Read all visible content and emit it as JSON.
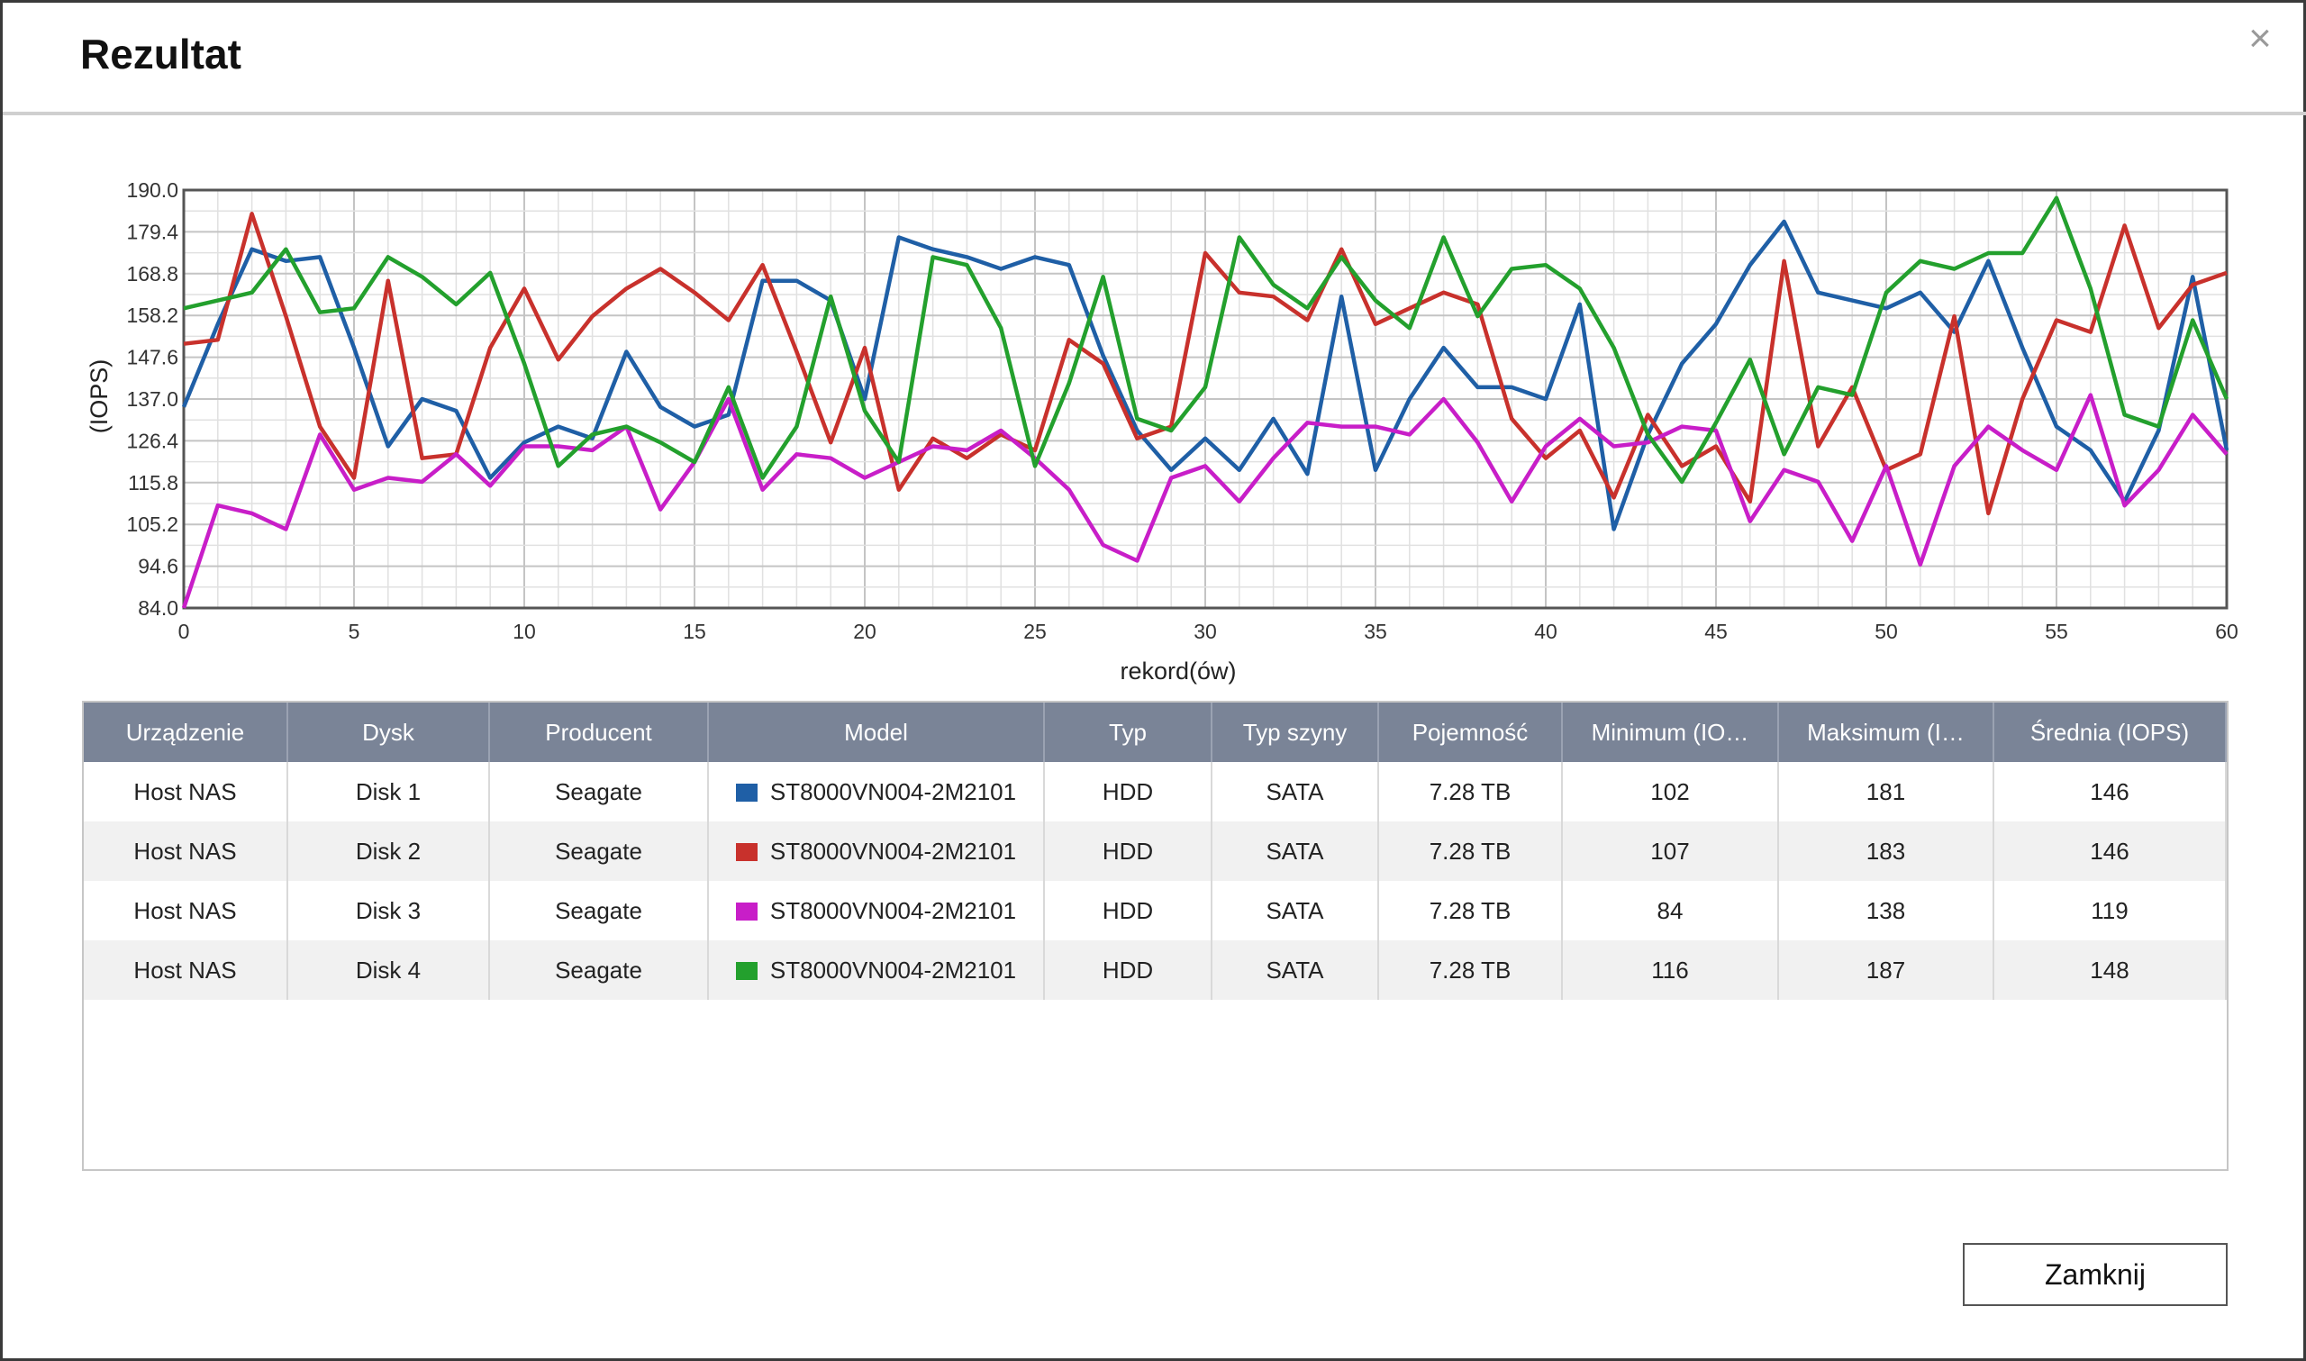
{
  "dialog": {
    "title": "Rezultat",
    "close_icon": "×",
    "close_button_label": "Zamknij"
  },
  "chart_data": {
    "type": "line",
    "xlabel": "rekord(ów)",
    "ylabel": "(IOPS)",
    "xlim": [
      0,
      60
    ],
    "ylim": [
      84.0,
      190.0
    ],
    "x_ticks": [
      "0",
      "5",
      "10",
      "15",
      "20",
      "25",
      "30",
      "35",
      "40",
      "45",
      "50",
      "55",
      "60"
    ],
    "y_ticks": [
      "84.0",
      "94.6",
      "105.2",
      "115.8",
      "126.4",
      "137.0",
      "147.6",
      "158.2",
      "168.8",
      "179.4",
      "190.0"
    ],
    "grid": true,
    "x": [
      0,
      1,
      2,
      3,
      4,
      5,
      6,
      7,
      8,
      9,
      10,
      11,
      12,
      13,
      14,
      15,
      16,
      17,
      18,
      19,
      20,
      21,
      22,
      23,
      24,
      25,
      26,
      27,
      28,
      29,
      30,
      31,
      32,
      33,
      34,
      35,
      36,
      37,
      38,
      39,
      40,
      41,
      42,
      43,
      44,
      45,
      46,
      47,
      48,
      49,
      50,
      51,
      52,
      53,
      54,
      55,
      56,
      57,
      58,
      59,
      60
    ],
    "series": [
      {
        "name": "Disk 1",
        "color": "#1f5fa6",
        "values": [
          135,
          156,
          175,
          172,
          173,
          150,
          125,
          137,
          134,
          117,
          126,
          130,
          127,
          149,
          135,
          130,
          133,
          167,
          167,
          162,
          137,
          178,
          175,
          173,
          170,
          173,
          171,
          148,
          129,
          119,
          127,
          119,
          132,
          118,
          163,
          119,
          137,
          150,
          140,
          140,
          137,
          161,
          104,
          128,
          146,
          156,
          171,
          182,
          164,
          162,
          160,
          164,
          154,
          172,
          150,
          130,
          124,
          111,
          129,
          168,
          124
        ]
      },
      {
        "name": "Disk 2",
        "color": "#c8312c",
        "values": [
          151,
          152,
          184,
          158,
          130,
          117,
          167,
          122,
          123,
          150,
          165,
          147,
          158,
          165,
          170,
          164,
          157,
          171,
          149,
          126,
          150,
          114,
          127,
          122,
          128,
          124,
          152,
          146,
          127,
          130,
          174,
          164,
          163,
          157,
          175,
          156,
          160,
          164,
          161,
          132,
          122,
          129,
          112,
          133,
          120,
          125,
          111,
          172,
          125,
          140,
          119,
          123,
          158,
          108,
          137,
          157,
          154,
          181,
          155,
          166,
          169
        ]
      },
      {
        "name": "Disk 3",
        "color": "#c81ec8",
        "values": [
          84,
          110,
          108,
          104,
          128,
          114,
          117,
          116,
          123,
          115,
          125,
          125,
          124,
          130,
          109,
          121,
          137,
          114,
          123,
          122,
          117,
          121,
          125,
          124,
          129,
          122,
          114,
          100,
          96,
          117,
          120,
          111,
          122,
          131,
          130,
          130,
          128,
          137,
          126,
          111,
          125,
          132,
          125,
          126,
          130,
          129,
          106,
          119,
          116,
          101,
          120,
          95,
          120,
          130,
          124,
          119,
          138,
          110,
          119,
          133,
          123
        ]
      },
      {
        "name": "Disk 4",
        "color": "#23a02d",
        "values": [
          160,
          162,
          164,
          175,
          159,
          160,
          173,
          168,
          161,
          169,
          146,
          120,
          128,
          130,
          126,
          121,
          140,
          117,
          130,
          163,
          134,
          121,
          173,
          171,
          155,
          120,
          141,
          168,
          132,
          129,
          140,
          178,
          166,
          160,
          173,
          162,
          155,
          178,
          158,
          170,
          171,
          165,
          150,
          128,
          116,
          131,
          147,
          123,
          140,
          138,
          164,
          172,
          170,
          174,
          174,
          188,
          165,
          133,
          130,
          157,
          137
        ]
      }
    ]
  },
  "table": {
    "headers": [
      "Urządzenie",
      "Dysk",
      "Producent",
      "Model",
      "Typ",
      "Typ szyny",
      "Pojemność",
      "Minimum (IO…",
      "Maksimum (I…",
      "Średnia (IOPS)"
    ],
    "rows": [
      {
        "device": "Host NAS",
        "disk": "Disk 1",
        "vendor": "Seagate",
        "model": "ST8000VN004-2M2101",
        "color": "#1f5fa6",
        "type": "HDD",
        "bus": "SATA",
        "capacity": "7.28 TB",
        "min": "102",
        "max": "181",
        "avg": "146"
      },
      {
        "device": "Host NAS",
        "disk": "Disk 2",
        "vendor": "Seagate",
        "model": "ST8000VN004-2M2101",
        "color": "#c8312c",
        "type": "HDD",
        "bus": "SATA",
        "capacity": "7.28 TB",
        "min": "107",
        "max": "183",
        "avg": "146"
      },
      {
        "device": "Host NAS",
        "disk": "Disk 3",
        "vendor": "Seagate",
        "model": "ST8000VN004-2M2101",
        "color": "#c81ec8",
        "type": "HDD",
        "bus": "SATA",
        "capacity": "7.28 TB",
        "min": "84",
        "max": "138",
        "avg": "119"
      },
      {
        "device": "Host NAS",
        "disk": "Disk 4",
        "vendor": "Seagate",
        "model": "ST8000VN004-2M2101",
        "color": "#23a02d",
        "type": "HDD",
        "bus": "SATA",
        "capacity": "7.28 TB",
        "min": "116",
        "max": "187",
        "avg": "148"
      }
    ]
  }
}
